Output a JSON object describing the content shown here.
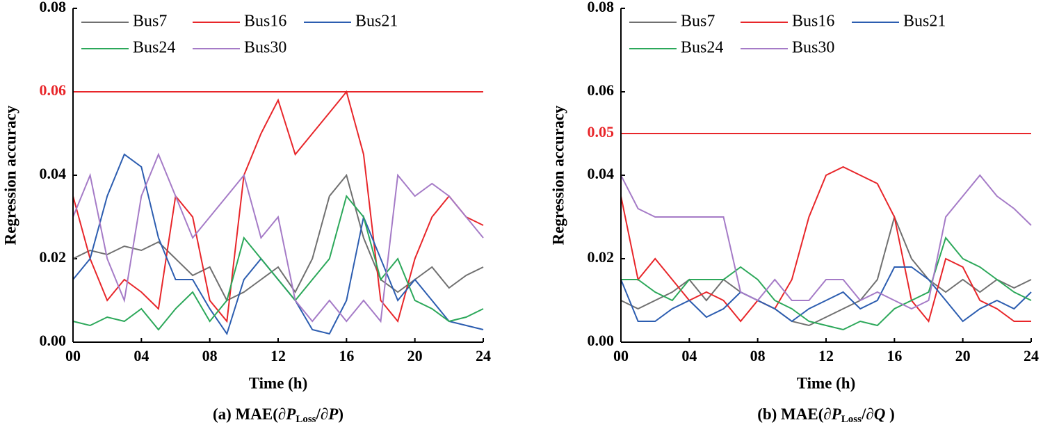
{
  "chart_data": [
    {
      "type": "line",
      "xlabel": "Time (h)",
      "ylabel": "Regression accuracy",
      "caption": [
        "(a)  MAE(∂",
        "P",
        "Loss",
        "/∂",
        "P",
        ")"
      ],
      "x": [
        0,
        1,
        2,
        3,
        4,
        5,
        6,
        7,
        8,
        9,
        10,
        11,
        12,
        13,
        14,
        15,
        16,
        17,
        18,
        19,
        20,
        21,
        22,
        23,
        24
      ],
      "xlim": [
        0,
        24
      ],
      "ylim": [
        0,
        0.08
      ],
      "xticks": [
        {
          "value": 0,
          "label": "00"
        },
        {
          "value": 4,
          "label": "04"
        },
        {
          "value": 8,
          "label": "08"
        },
        12,
        16,
        20,
        24
      ],
      "yticks": [
        {
          "value": 0,
          "label": "0.00"
        },
        0.02,
        0.04,
        0.06,
        0.08
      ],
      "threshold": {
        "value": 0.06,
        "color": "#e8262a"
      },
      "series": [
        {
          "name": "Bus7",
          "color": "#707070",
          "values": [
            0.02,
            0.022,
            0.021,
            0.023,
            0.022,
            0.024,
            0.02,
            0.016,
            0.018,
            0.01,
            0.012,
            0.015,
            0.018,
            0.012,
            0.02,
            0.035,
            0.04,
            0.025,
            0.015,
            0.012,
            0.015,
            0.018,
            0.013,
            0.016,
            0.018
          ]
        },
        {
          "name": "Bus16",
          "color": "#e8262a",
          "values": [
            0.035,
            0.02,
            0.01,
            0.015,
            0.012,
            0.008,
            0.035,
            0.03,
            0.01,
            0.005,
            0.04,
            0.05,
            0.058,
            0.045,
            0.05,
            0.055,
            0.06,
            0.045,
            0.01,
            0.005,
            0.02,
            0.03,
            0.035,
            0.03,
            0.028
          ]
        },
        {
          "name": "Bus21",
          "color": "#2c5db0",
          "values": [
            0.015,
            0.02,
            0.035,
            0.045,
            0.042,
            0.025,
            0.015,
            0.015,
            0.008,
            0.002,
            0.015,
            0.02,
            0.015,
            0.01,
            0.003,
            0.002,
            0.01,
            0.03,
            0.02,
            0.01,
            0.015,
            0.01,
            0.005,
            0.004,
            0.003
          ]
        },
        {
          "name": "Bus24",
          "color": "#2ca85a",
          "values": [
            0.005,
            0.004,
            0.006,
            0.005,
            0.008,
            0.003,
            0.008,
            0.012,
            0.005,
            0.01,
            0.025,
            0.02,
            0.015,
            0.01,
            0.015,
            0.02,
            0.035,
            0.03,
            0.015,
            0.02,
            0.01,
            0.008,
            0.005,
            0.006,
            0.008
          ]
        },
        {
          "name": "Bus30",
          "color": "#a57bc7",
          "values": [
            0.03,
            0.04,
            0.02,
            0.01,
            0.035,
            0.045,
            0.035,
            0.025,
            0.03,
            0.035,
            0.04,
            0.025,
            0.03,
            0.01,
            0.005,
            0.01,
            0.005,
            0.01,
            0.005,
            0.04,
            0.035,
            0.038,
            0.035,
            0.03,
            0.025
          ]
        }
      ]
    },
    {
      "type": "line",
      "xlabel": "Time (h)",
      "ylabel": "Regression accuracy",
      "caption": [
        "(b) MAE(∂",
        "P",
        "Loss",
        "/∂",
        "Q",
        " )"
      ],
      "x": [
        0,
        1,
        2,
        3,
        4,
        5,
        6,
        7,
        8,
        9,
        10,
        11,
        12,
        13,
        14,
        15,
        16,
        17,
        18,
        19,
        20,
        21,
        22,
        23,
        24
      ],
      "xlim": [
        0,
        24
      ],
      "ylim": [
        0,
        0.08
      ],
      "xticks": [
        {
          "value": 0,
          "label": "00"
        },
        {
          "value": 4,
          "label": "04"
        },
        {
          "value": 8,
          "label": "08"
        },
        12,
        16,
        20,
        24
      ],
      "yticks": [
        {
          "value": 0,
          "label": "0.00"
        },
        0.02,
        0.04,
        0.05,
        0.06,
        0.08
      ],
      "threshold": {
        "value": 0.05,
        "color": "#e8262a"
      },
      "series": [
        {
          "name": "Bus7",
          "color": "#707070",
          "values": [
            0.01,
            0.008,
            0.01,
            0.012,
            0.015,
            0.01,
            0.015,
            0.012,
            0.01,
            0.008,
            0.005,
            0.004,
            0.006,
            0.008,
            0.01,
            0.015,
            0.03,
            0.02,
            0.015,
            0.012,
            0.015,
            0.012,
            0.015,
            0.013,
            0.015
          ]
        },
        {
          "name": "Bus16",
          "color": "#e8262a",
          "values": [
            0.035,
            0.015,
            0.02,
            0.015,
            0.01,
            0.012,
            0.01,
            0.005,
            0.01,
            0.008,
            0.015,
            0.03,
            0.04,
            0.042,
            0.04,
            0.038,
            0.03,
            0.01,
            0.005,
            0.02,
            0.018,
            0.01,
            0.008,
            0.005,
            0.005
          ]
        },
        {
          "name": "Bus21",
          "color": "#2c5db0",
          "values": [
            0.015,
            0.005,
            0.005,
            0.008,
            0.01,
            0.006,
            0.008,
            0.012,
            0.01,
            0.008,
            0.005,
            0.008,
            0.01,
            0.012,
            0.008,
            0.01,
            0.018,
            0.018,
            0.015,
            0.01,
            0.005,
            0.008,
            0.01,
            0.008,
            0.012
          ]
        },
        {
          "name": "Bus24",
          "color": "#2ca85a",
          "values": [
            0.015,
            0.015,
            0.012,
            0.01,
            0.015,
            0.015,
            0.015,
            0.018,
            0.015,
            0.01,
            0.008,
            0.005,
            0.004,
            0.003,
            0.005,
            0.004,
            0.008,
            0.01,
            0.012,
            0.025,
            0.02,
            0.018,
            0.015,
            0.012,
            0.01
          ]
        },
        {
          "name": "Bus30",
          "color": "#a57bc7",
          "values": [
            0.04,
            0.032,
            0.03,
            0.03,
            0.03,
            0.03,
            0.03,
            0.012,
            0.01,
            0.015,
            0.01,
            0.01,
            0.015,
            0.015,
            0.01,
            0.012,
            0.01,
            0.008,
            0.01,
            0.03,
            0.035,
            0.04,
            0.035,
            0.032,
            0.028
          ]
        }
      ]
    }
  ]
}
